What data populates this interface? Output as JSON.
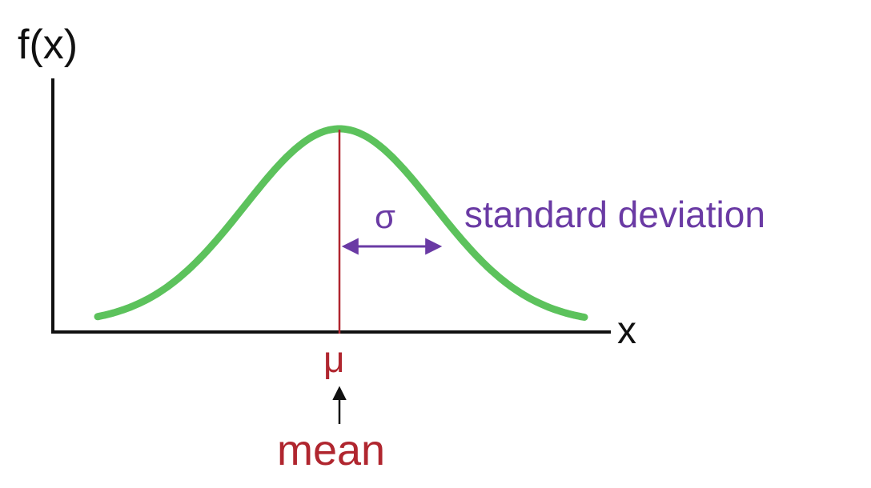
{
  "diagram": {
    "y_axis_label": "f(x)",
    "x_axis_label": "x",
    "mu_label": "μ",
    "mean_label": "mean",
    "sigma_label": "σ",
    "standard_deviation_label": "standard deviation"
  },
  "colors": {
    "curve": "#5cc25c",
    "axis": "#111111",
    "mean": "#b0262f",
    "standard_deviation": "#6a3aa4"
  }
}
